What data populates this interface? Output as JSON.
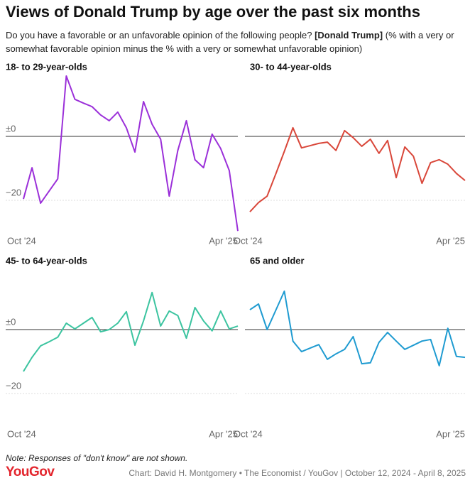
{
  "title": "Views of Donald Trump by age over the past six months",
  "subtitle": [
    "Do you have a favorable or an unfavorable opinion of the following people? ",
    "[Donald Trump]",
    " (% with a very or somewhat favorable opinion minus the % with a very or somewhat unfavorable opinion)"
  ],
  "chart_data": [
    {
      "type": "line",
      "title": "18- to 29-year-olds",
      "color": "#9b30d9",
      "categories": [
        "Oct '24",
        null,
        null,
        null,
        null,
        null,
        null,
        null,
        null,
        null,
        null,
        null,
        null,
        null,
        null,
        null,
        null,
        null,
        null,
        null,
        null,
        null,
        null,
        null,
        null,
        "Apr '25"
      ],
      "values": [
        -19.6,
        -9.8,
        -20.9,
        -17.1,
        -13.3,
        18.9,
        11.6,
        10.4,
        9.3,
        6.7,
        4.9,
        7.6,
        2.7,
        -4.9,
        10.9,
        3.8,
        -0.9,
        -18.7,
        -4.4,
        4.9,
        -7.3,
        -9.8,
        0.7,
        -3.8,
        -10.7,
        -29.6
      ],
      "ylim": [
        -30,
        20
      ],
      "yticks": [
        {
          "value": 0,
          "label": "±0"
        },
        {
          "value": -20,
          "label": "−20"
        }
      ]
    },
    {
      "type": "line",
      "title": "30- to 44-year-olds",
      "color": "#d9473a",
      "categories": [
        "Oct '24",
        null,
        null,
        null,
        null,
        null,
        null,
        null,
        null,
        null,
        null,
        null,
        null,
        null,
        null,
        null,
        null,
        null,
        null,
        null,
        null,
        null,
        null,
        null,
        null,
        "Apr '25"
      ],
      "values": [
        -23.6,
        -20.7,
        -18.7,
        -11.8,
        -4.7,
        2.7,
        -3.6,
        -2.9,
        -2.2,
        -1.8,
        -4.4,
        1.8,
        -0.4,
        -3.1,
        -0.9,
        -5.3,
        -1.3,
        -12.9,
        -3.3,
        -6.2,
        -14.7,
        -8.2,
        -7.3,
        -8.7,
        -11.6,
        -13.8
      ],
      "ylim": [
        -30,
        20
      ],
      "yticks": [
        0,
        -20
      ]
    },
    {
      "type": "line",
      "title": "45- to 64-year-olds",
      "color": "#3cc4a0",
      "categories": [
        "Oct '24",
        null,
        null,
        null,
        null,
        null,
        null,
        null,
        null,
        null,
        null,
        null,
        null,
        null,
        null,
        null,
        null,
        null,
        null,
        null,
        null,
        null,
        null,
        null,
        null,
        "Apr '25"
      ],
      "values": [
        -13.1,
        -8.7,
        -5.1,
        -3.8,
        -2.4,
        2.0,
        0.2,
        2.0,
        3.8,
        -0.7,
        0,
        2.0,
        5.6,
        -4.9,
        2.7,
        11.6,
        1.1,
        5.8,
        4.4,
        -2.7,
        6.9,
        2.7,
        -0.4,
        5.8,
        0.2,
        1.1
      ],
      "ylim": [
        -30,
        20
      ],
      "yticks": [
        {
          "value": 0,
          "label": "±0"
        },
        {
          "value": -20,
          "label": "−20"
        }
      ]
    },
    {
      "type": "line",
      "title": "65 and older",
      "color": "#1f9bd1",
      "categories": [
        "Oct '24",
        null,
        null,
        null,
        null,
        null,
        null,
        null,
        null,
        null,
        null,
        null,
        null,
        null,
        null,
        null,
        null,
        null,
        null,
        null,
        null,
        null,
        null,
        null,
        null,
        "Apr '25"
      ],
      "values": [
        6.2,
        8.0,
        0,
        6.0,
        12.0,
        -3.6,
        -6.9,
        -5.8,
        -4.7,
        -9.3,
        -7.6,
        -6.2,
        -2.2,
        -10.7,
        -10.4,
        -4.0,
        -0.9,
        -3.6,
        -6.2,
        -4.9,
        -3.6,
        -3.1,
        -11.3,
        0.4,
        -8.4,
        -8.7
      ],
      "ylim": [
        -30,
        20
      ],
      "yticks": [
        0,
        -20
      ]
    }
  ],
  "note": "Note: Responses of \"don't know\" are not shown.",
  "logo": "YouGov",
  "source": "Chart: David H. Montgomery • The Economist / YouGov | October 12, 2024 - April 8, 2025"
}
